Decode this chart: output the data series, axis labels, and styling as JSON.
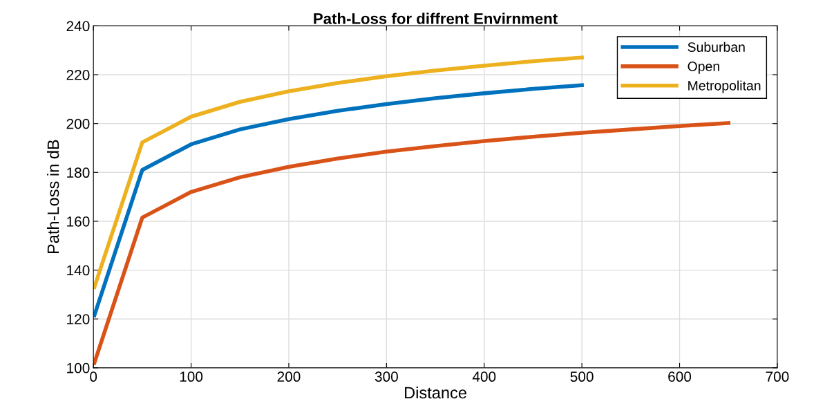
{
  "chart_data": {
    "type": "line",
    "title": "Path-Loss for diffrent Envirnment",
    "xlabel": "Distance",
    "ylabel": "Path-Loss in dB",
    "x": [
      1,
      50,
      100,
      150,
      200,
      250,
      300,
      350,
      400,
      450,
      500,
      550,
      600,
      650
    ],
    "series": [
      {
        "name": "Suburban",
        "color": "#0072bd",
        "values": [
          121.5,
          181,
          191.5,
          197.6,
          201.8,
          205.2,
          208,
          210.4,
          212.4,
          214.2,
          215.7,
          null,
          null,
          null
        ]
      },
      {
        "name": "Open",
        "color": "#d95319",
        "values": [
          102,
          161.5,
          172,
          178,
          182.3,
          185.7,
          188.5,
          190.8,
          192.8,
          194.6,
          196.2,
          197.6,
          199,
          200.2
        ]
      },
      {
        "name": "Metropolitan",
        "color": "#edb120",
        "values": [
          133,
          192.3,
          202.8,
          208.9,
          213.2,
          216.6,
          219.4,
          221.7,
          223.7,
          225.5,
          227,
          null,
          null,
          null
        ]
      }
    ],
    "xlim": [
      0,
      700
    ],
    "xticks": [
      0,
      100,
      200,
      300,
      400,
      500,
      600,
      700
    ],
    "ylim": [
      100,
      240
    ],
    "yticks": [
      100,
      120,
      140,
      160,
      180,
      200,
      220,
      240
    ],
    "grid": true,
    "legend": "top right",
    "line_style": "solid",
    "marker": "none"
  }
}
